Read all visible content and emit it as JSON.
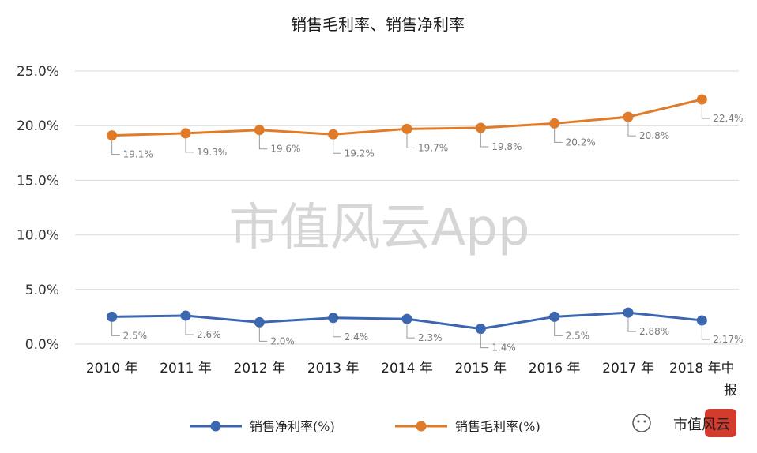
{
  "chart_data": {
    "type": "line",
    "title": "销售毛利率、销售净利率",
    "categories": [
      "2010 年",
      "2011 年",
      "2012 年",
      "2013 年",
      "2014 年",
      "2015 年",
      "2016 年",
      "2017 年",
      "2018 年中报"
    ],
    "yticks": [
      "25.0%",
      "20.0%",
      "15.0%",
      "10.0%",
      "5.0%",
      "0.0%"
    ],
    "ylim": [
      0,
      25
    ],
    "grid": true,
    "legend_position": "bottom",
    "series": [
      {
        "name": "销售净利率(%)",
        "color": "#3b66b0",
        "values": [
          2.5,
          2.6,
          2.0,
          2.4,
          2.3,
          1.4,
          2.5,
          2.88,
          2.17
        ],
        "labels": [
          "2.5%",
          "2.6%",
          "2.0%",
          "2.4%",
          "2.3%",
          "1.4%",
          "2.5%",
          "2.88%",
          "2.17%"
        ]
      },
      {
        "name": "销售毛利率(%)",
        "color": "#e07b2a",
        "values": [
          19.1,
          19.3,
          19.6,
          19.2,
          19.7,
          19.8,
          20.2,
          20.8,
          22.4
        ],
        "labels": [
          "19.1%",
          "19.3%",
          "19.6%",
          "19.2%",
          "19.7%",
          "19.8%",
          "20.2%",
          "20.8%",
          "22.4%"
        ]
      }
    ]
  },
  "watermark": {
    "text": "市值风云App",
    "corner_text": "市值风云"
  }
}
